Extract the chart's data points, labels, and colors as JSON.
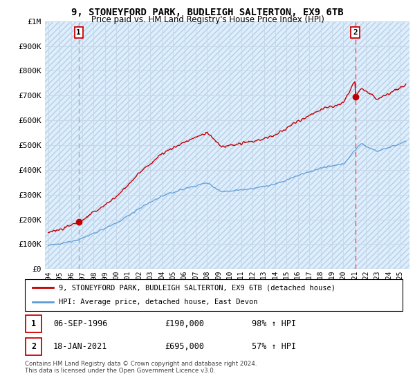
{
  "title": "9, STONEYFORD PARK, BUDLEIGH SALTERTON, EX9 6TB",
  "subtitle": "Price paid vs. HM Land Registry's House Price Index (HPI)",
  "ylabel_ticks": [
    "£0",
    "£100K",
    "£200K",
    "£300K",
    "£400K",
    "£500K",
    "£600K",
    "£700K",
    "£800K",
    "£900K",
    "£1M"
  ],
  "ytick_values": [
    0,
    100000,
    200000,
    300000,
    400000,
    500000,
    600000,
    700000,
    800000,
    900000,
    1000000
  ],
  "ylim": [
    0,
    1000000
  ],
  "xlim_start": 1993.7,
  "xlim_end": 2025.8,
  "xtick_years": [
    1994,
    1995,
    1996,
    1997,
    1998,
    1999,
    2000,
    2001,
    2002,
    2003,
    2004,
    2005,
    2006,
    2007,
    2008,
    2009,
    2010,
    2011,
    2012,
    2013,
    2014,
    2015,
    2016,
    2017,
    2018,
    2019,
    2020,
    2021,
    2022,
    2023,
    2024,
    2025
  ],
  "sale1_x": 1996.68,
  "sale1_y": 190000,
  "sale1_label": "1",
  "sale2_x": 2021.05,
  "sale2_y": 695000,
  "sale2_label": "2",
  "hpi_color": "#5b9bd5",
  "price_color": "#c00000",
  "vline1_color": "#aaaaaa",
  "vline2_color": "#ff4444",
  "grid_color": "#c8d8e8",
  "legend_label_price": "9, STONEYFORD PARK, BUDLEIGH SALTERTON, EX9 6TB (detached house)",
  "legend_label_hpi": "HPI: Average price, detached house, East Devon",
  "footnote": "Contains HM Land Registry data © Crown copyright and database right 2024.\nThis data is licensed under the Open Government Licence v3.0.",
  "bg_color": "#ffffff"
}
